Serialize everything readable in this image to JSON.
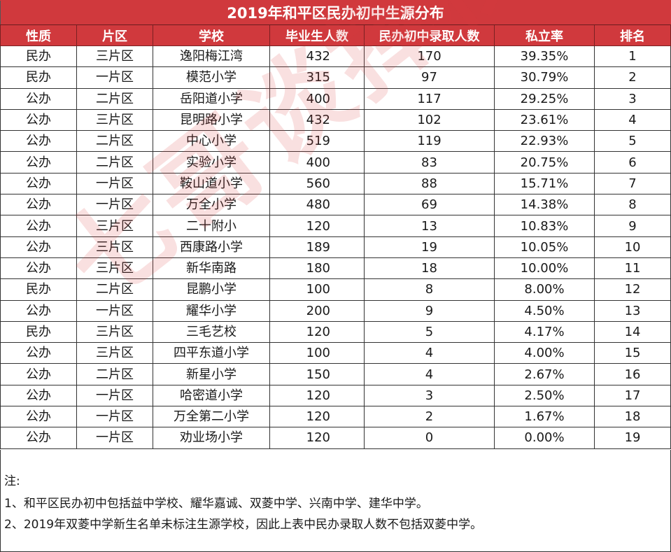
{
  "title": "2019年和平区民办初中生源分布",
  "colors": {
    "header_bg": "#d0393d",
    "header_text": "#ffffff",
    "watermark": "#dc3c3c"
  },
  "columns": [
    "性质",
    "片区",
    "学校",
    "毕业生人数",
    "民办初中录取人数",
    "私立率",
    "排名"
  ],
  "rows": [
    [
      "民办",
      "三片区",
      "逸阳梅江湾",
      "432",
      "170",
      "39.35%",
      "1"
    ],
    [
      "民办",
      "一片区",
      "模范小学",
      "315",
      "97",
      "30.79%",
      "2"
    ],
    [
      "公办",
      "二片区",
      "岳阳道小学",
      "400",
      "117",
      "29.25%",
      "3"
    ],
    [
      "公办",
      "三片区",
      "昆明路小学",
      "432",
      "102",
      "23.61%",
      "4"
    ],
    [
      "公办",
      "二片区",
      "中心小学",
      "519",
      "119",
      "22.93%",
      "5"
    ],
    [
      "公办",
      "二片区",
      "实验小学",
      "400",
      "83",
      "20.75%",
      "6"
    ],
    [
      "公办",
      "一片区",
      "鞍山道小学",
      "560",
      "88",
      "15.71%",
      "7"
    ],
    [
      "公办",
      "一片区",
      "万全小学",
      "480",
      "69",
      "14.38%",
      "8"
    ],
    [
      "公办",
      "三片区",
      "二十附小",
      "120",
      "13",
      "10.83%",
      "9"
    ],
    [
      "公办",
      "三片区",
      "西康路小学",
      "189",
      "19",
      "10.05%",
      "10"
    ],
    [
      "公办",
      "三片区",
      "新华南路",
      "180",
      "18",
      "10.00%",
      "11"
    ],
    [
      "民办",
      "二片区",
      "昆鹏小学",
      "100",
      "8",
      "8.00%",
      "12"
    ],
    [
      "公办",
      "一片区",
      "耀华小学",
      "200",
      "9",
      "4.50%",
      "13"
    ],
    [
      "民办",
      "三片区",
      "三毛艺校",
      "120",
      "5",
      "4.17%",
      "14"
    ],
    [
      "公办",
      "三片区",
      "四平东道小学",
      "100",
      "4",
      "4.00%",
      "15"
    ],
    [
      "公办",
      "二片区",
      "新星小学",
      "150",
      "4",
      "2.67%",
      "16"
    ],
    [
      "公办",
      "一片区",
      "哈密道小学",
      "120",
      "3",
      "2.50%",
      "17"
    ],
    [
      "公办",
      "一片区",
      "万全第二小学",
      "120",
      "2",
      "1.67%",
      "18"
    ],
    [
      "公办",
      "一片区",
      "劝业场小学",
      "120",
      "0",
      "0.00%",
      "19"
    ]
  ],
  "notes": {
    "heading": "注:",
    "items": [
      "1、和平区民办初中包括益中学校、耀华嘉诚、双菱中学、兴南中学、建华中学。",
      "2、2019年双菱中学新生名单未标注生源学校，因此上表中民办录取人数不包括双菱中学。"
    ]
  },
  "watermark": "七哥谈择校"
}
